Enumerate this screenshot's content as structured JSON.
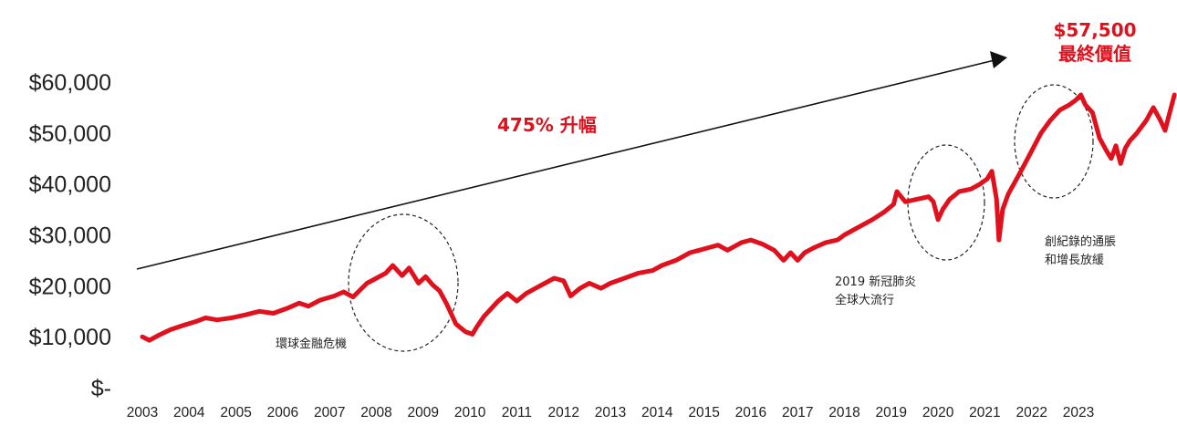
{
  "chart_data": {
    "type": "line",
    "title": "",
    "xlabel": "",
    "ylabel": "",
    "ylim": [
      0,
      60000
    ],
    "grid": false,
    "y_ticks": [
      {
        "value": 0,
        "label": "$-"
      },
      {
        "value": 10000,
        "label": "$10,000"
      },
      {
        "value": 20000,
        "label": "$20,000"
      },
      {
        "value": 30000,
        "label": "$30,000"
      },
      {
        "value": 40000,
        "label": "$40,000"
      },
      {
        "value": 50000,
        "label": "$50,000"
      },
      {
        "value": 60000,
        "label": "$60,000"
      }
    ],
    "x_ticks": [
      "2003",
      "2004",
      "2005",
      "2006",
      "2007",
      "2008",
      "2009",
      "2010",
      "2011",
      "2012",
      "2013",
      "2014",
      "2015",
      "2016",
      "2017",
      "2018",
      "2019",
      "2020",
      "2021",
      "2022",
      "2023"
    ],
    "series": [
      {
        "color": "#e0101c",
        "points": [
          [
            2003.0,
            10000
          ],
          [
            2003.15,
            9300
          ],
          [
            2003.35,
            10300
          ],
          [
            2003.6,
            11400
          ],
          [
            2003.9,
            12300
          ],
          [
            2004.15,
            13000
          ],
          [
            2004.35,
            13700
          ],
          [
            2004.6,
            13300
          ],
          [
            2004.9,
            13700
          ],
          [
            2005.2,
            14300
          ],
          [
            2005.5,
            15000
          ],
          [
            2005.8,
            14600
          ],
          [
            2006.1,
            15600
          ],
          [
            2006.35,
            16600
          ],
          [
            2006.55,
            16000
          ],
          [
            2006.8,
            17200
          ],
          [
            2007.1,
            18000
          ],
          [
            2007.3,
            18800
          ],
          [
            2007.5,
            17800
          ],
          [
            2007.8,
            20500
          ],
          [
            2008.0,
            21500
          ],
          [
            2008.2,
            22500
          ],
          [
            2008.35,
            24000
          ],
          [
            2008.55,
            22000
          ],
          [
            2008.7,
            23500
          ],
          [
            2008.9,
            20500
          ],
          [
            2009.05,
            21800
          ],
          [
            2009.2,
            20200
          ],
          [
            2009.35,
            19000
          ],
          [
            2009.5,
            16500
          ],
          [
            2009.7,
            12500
          ],
          [
            2009.9,
            11000
          ],
          [
            2010.05,
            10500
          ],
          [
            2010.15,
            12000
          ],
          [
            2010.3,
            14000
          ],
          [
            2010.45,
            15500
          ],
          [
            2010.6,
            17000
          ],
          [
            2010.8,
            18500
          ],
          [
            2011.0,
            17000
          ],
          [
            2011.2,
            18500
          ],
          [
            2011.4,
            19500
          ],
          [
            2011.6,
            20500
          ],
          [
            2011.8,
            21500
          ],
          [
            2012.0,
            21000
          ],
          [
            2012.15,
            18000
          ],
          [
            2012.35,
            19500
          ],
          [
            2012.55,
            20500
          ],
          [
            2012.8,
            19500
          ],
          [
            2013.0,
            20500
          ],
          [
            2013.3,
            21500
          ],
          [
            2013.6,
            22500
          ],
          [
            2013.9,
            23000
          ],
          [
            2014.1,
            24000
          ],
          [
            2014.4,
            25000
          ],
          [
            2014.7,
            26500
          ],
          [
            2014.9,
            27000
          ],
          [
            2015.1,
            27500
          ],
          [
            2015.3,
            28000
          ],
          [
            2015.5,
            27000
          ],
          [
            2015.8,
            28500
          ],
          [
            2016.0,
            29000
          ],
          [
            2016.25,
            28200
          ],
          [
            2016.5,
            27000
          ],
          [
            2016.7,
            25000
          ],
          [
            2016.85,
            26500
          ],
          [
            2017.0,
            25000
          ],
          [
            2017.15,
            26500
          ],
          [
            2017.35,
            27500
          ],
          [
            2017.6,
            28500
          ],
          [
            2017.85,
            29000
          ],
          [
            2018.0,
            30000
          ],
          [
            2018.3,
            31500
          ],
          [
            2018.6,
            33000
          ],
          [
            2018.85,
            34500
          ],
          [
            2019.05,
            36000
          ],
          [
            2019.12,
            38500
          ],
          [
            2019.3,
            36500
          ],
          [
            2019.55,
            37000
          ],
          [
            2019.8,
            37500
          ],
          [
            2019.9,
            36500
          ],
          [
            2020.0,
            33000
          ],
          [
            2020.1,
            35000
          ],
          [
            2020.25,
            37000
          ],
          [
            2020.45,
            38500
          ],
          [
            2020.7,
            39000
          ],
          [
            2020.9,
            40000
          ],
          [
            2021.05,
            41000
          ],
          [
            2021.15,
            42500
          ],
          [
            2021.25,
            37000
          ],
          [
            2021.3,
            29000
          ],
          [
            2021.38,
            35000
          ],
          [
            2021.5,
            38000
          ],
          [
            2021.65,
            40500
          ],
          [
            2021.8,
            43000
          ],
          [
            2022.0,
            46500
          ],
          [
            2022.2,
            50000
          ],
          [
            2022.4,
            52500
          ],
          [
            2022.6,
            54500
          ],
          [
            2022.8,
            55500
          ],
          [
            2022.95,
            56500
          ],
          [
            2023.05,
            57500
          ],
          [
            2023.15,
            55500
          ],
          [
            2023.3,
            54000
          ],
          [
            2023.45,
            49000
          ],
          [
            2023.6,
            46500
          ],
          [
            2023.7,
            45000
          ],
          [
            2023.8,
            47500
          ],
          [
            2023.9,
            44000
          ],
          [
            2024.0,
            47000
          ],
          [
            2024.1,
            48500
          ],
          [
            2024.25,
            50000
          ],
          [
            2024.45,
            52500
          ],
          [
            2024.6,
            55000
          ],
          [
            2024.75,
            52500
          ],
          [
            2024.85,
            50500
          ],
          [
            2024.95,
            54000
          ],
          [
            2025.05,
            57500
          ]
        ]
      }
    ],
    "annotations": {
      "final_value": "$57,500",
      "final_label": "最終價值",
      "growth": "475% 升幅",
      "gfc": "環球金融危機",
      "covid_line1": "2019 新冠肺炎",
      "covid_line2": "全球大流行",
      "inflation_line1": "創紀錄的通脹",
      "inflation_line2": "和增長放緩"
    }
  }
}
